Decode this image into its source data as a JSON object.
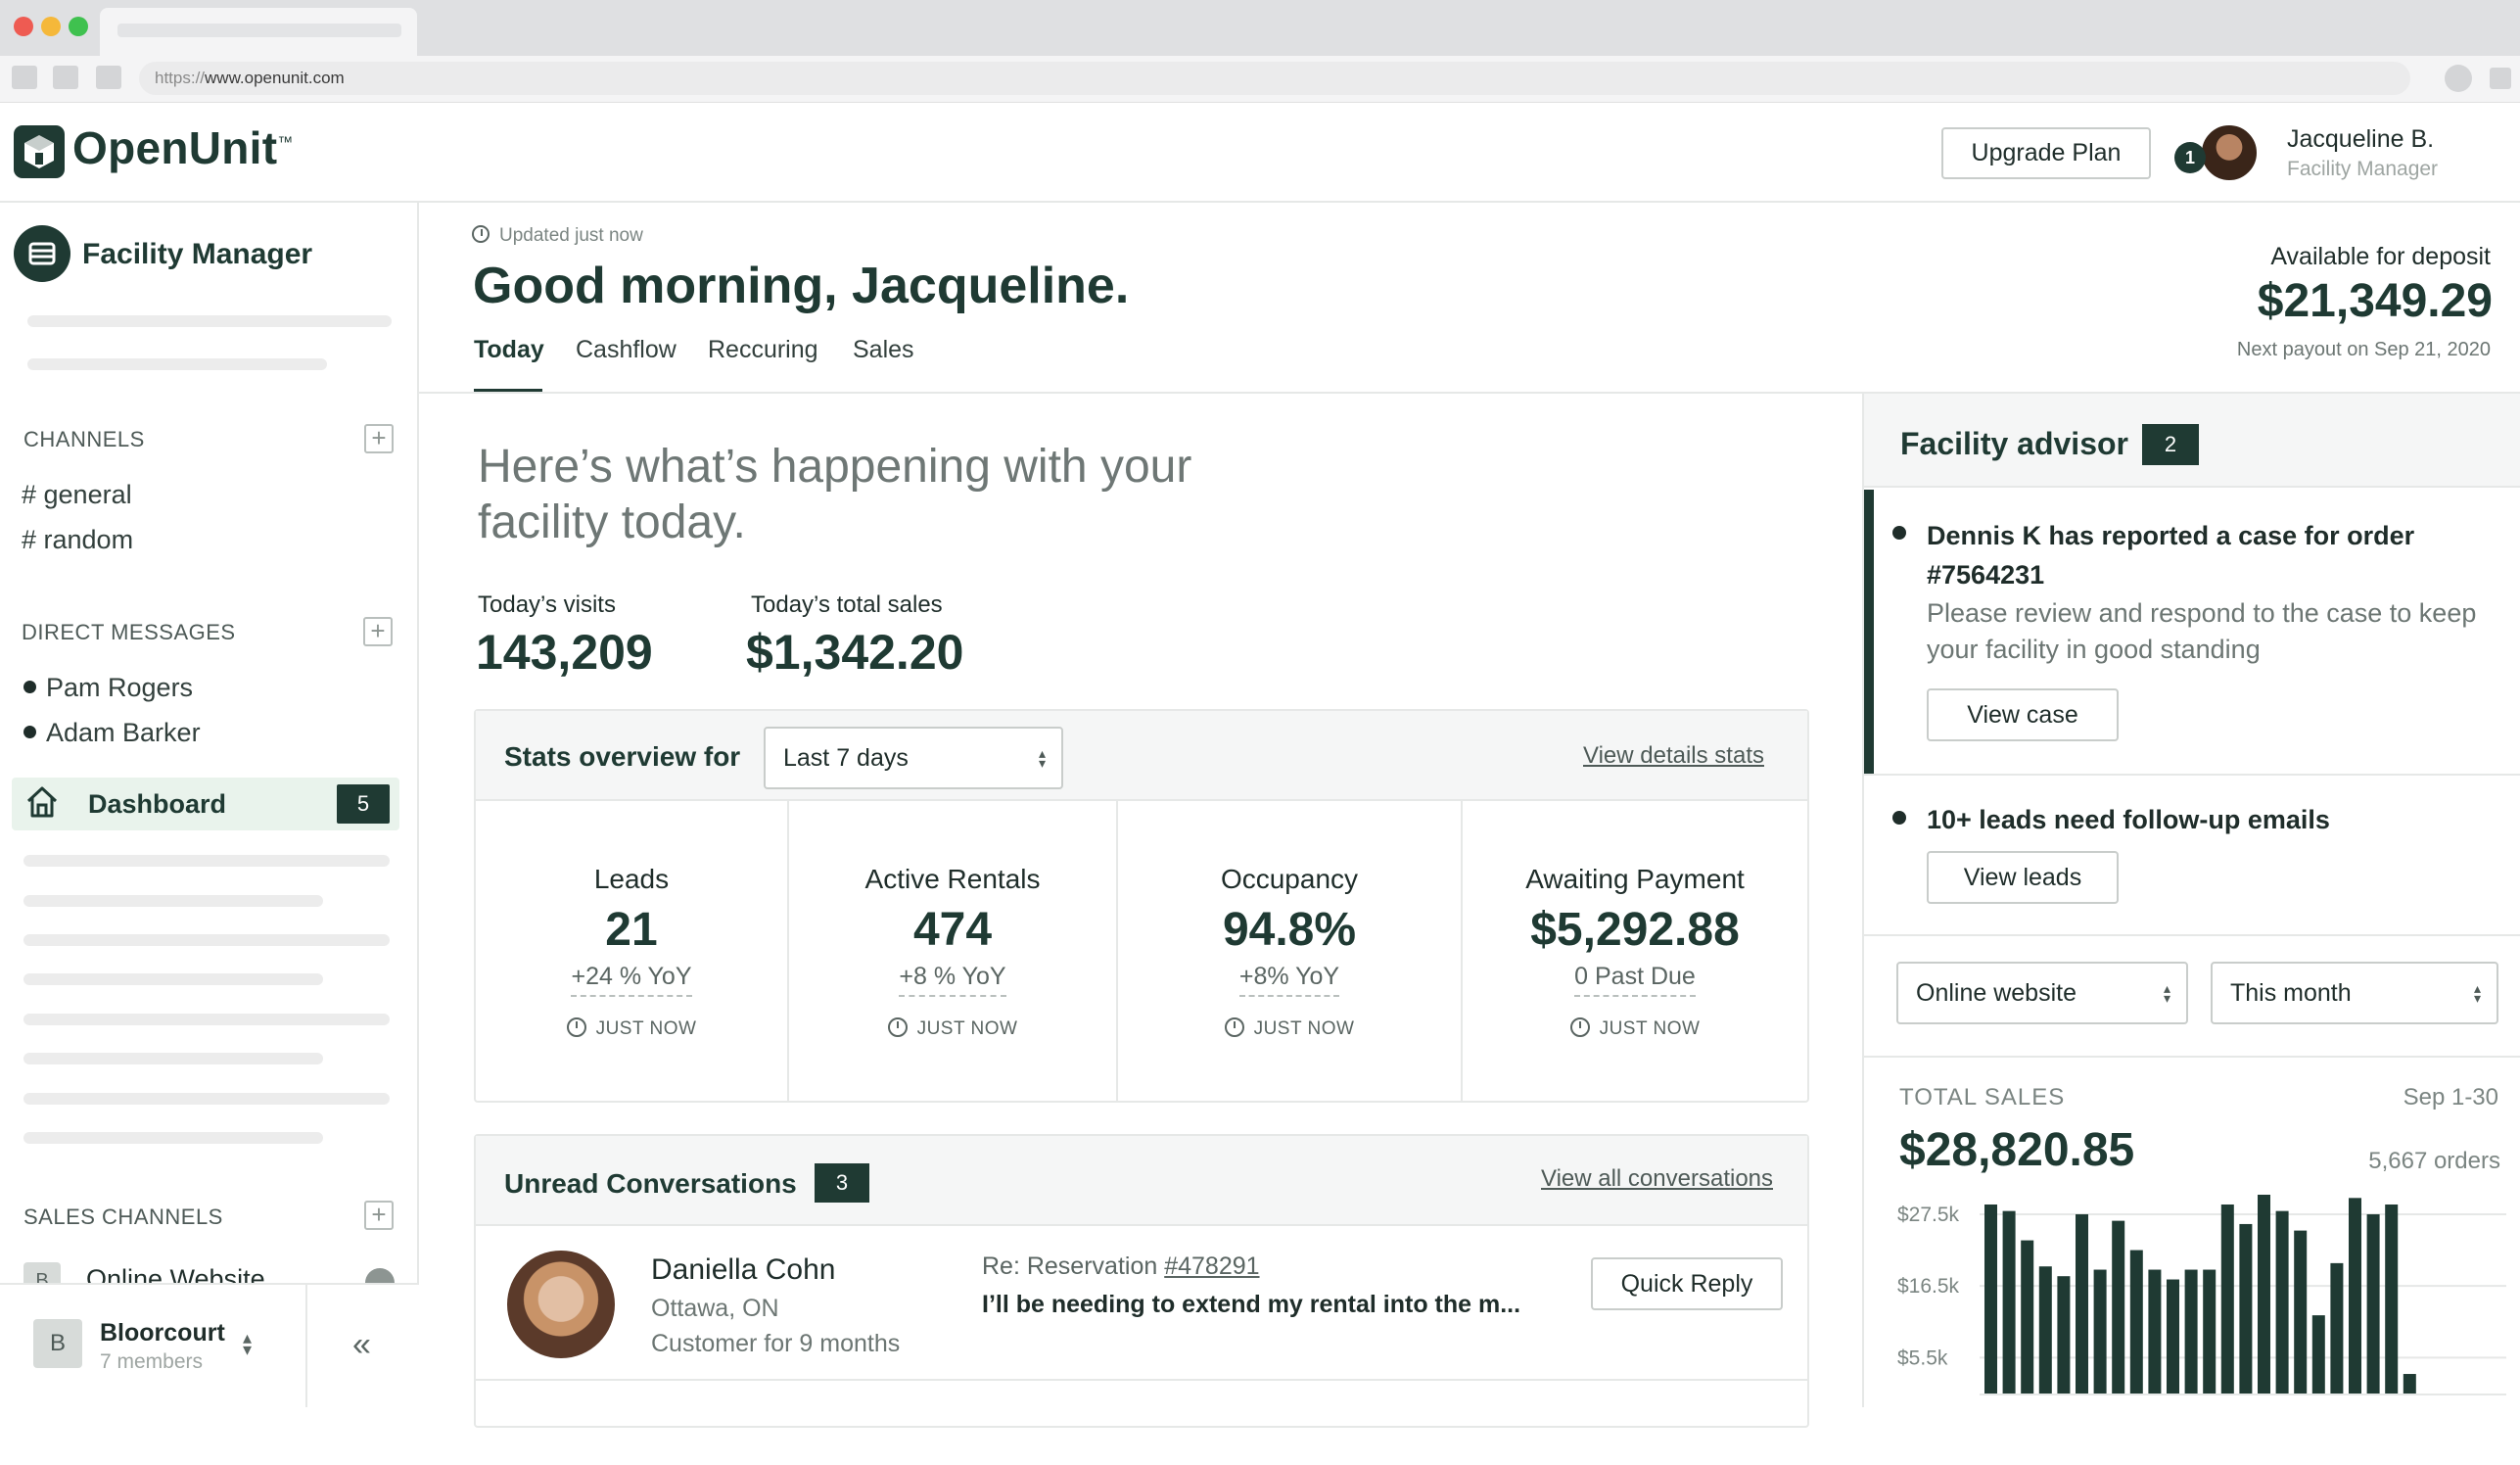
{
  "browser": {
    "url_protocol": "https://",
    "url_host": "www.openunit.com"
  },
  "app": {
    "logo_name": "OpenUnit",
    "logo_tm": "™",
    "upgrade_label": "Upgrade Plan",
    "notification_count": "1",
    "user_name": "Jacqueline B.",
    "user_role": "Facility Manager"
  },
  "sidebar": {
    "title": "Facility Manager",
    "channels_heading": "CHANNELS",
    "channels": [
      "# general",
      "# random"
    ],
    "dm_heading": "DIRECT MESSAGES",
    "direct_messages": [
      "Pam Rogers",
      "Adam Barker"
    ],
    "dashboard_label": "Dashboard",
    "dashboard_badge": "5",
    "sales_heading": "SALES CHANNELS",
    "sales_channel_icon": "B",
    "sales_channel_label": "Online Website",
    "team_initial": "B",
    "team_name": "Bloorcourt",
    "team_members": "7 members",
    "collapse_glyph": "«"
  },
  "main": {
    "updated": "Updated just now",
    "greeting": "Good morning, Jacqueline.",
    "tabs": [
      "Today",
      "Cashflow",
      "Reccuring",
      "Sales"
    ],
    "deposit_label": "Available for deposit",
    "deposit_value": "$21,349.29",
    "deposit_next": "Next payout on Sep 21, 2020",
    "happening": "Here’s what’s happening with your facility today.",
    "visits_label": "Today’s visits",
    "visits_value": "143,209",
    "sales_label": "Today’s total sales",
    "sales_value": "$1,342.20"
  },
  "stats": {
    "title": "Stats overview for",
    "period": "Last 7 days",
    "details_link": "View details stats",
    "items": [
      {
        "label": "Leads",
        "value": "21",
        "delta": "+24 % YoY",
        "time": "JUST NOW"
      },
      {
        "label": "Active Rentals",
        "value": "474",
        "delta": "+8 % YoY",
        "time": "JUST NOW"
      },
      {
        "label": "Occupancy",
        "value": "94.8%",
        "delta": "+8% YoY",
        "time": "JUST NOW"
      },
      {
        "label": "Awaiting Payment",
        "value": "$5,292.88",
        "delta": "0 Past Due",
        "time": "JUST NOW"
      }
    ]
  },
  "conversations": {
    "title": "Unread Conversations",
    "badge": "3",
    "view_all": "View all conversations",
    "item": {
      "name": "Daniella Cohn",
      "location": "Ottawa, ON",
      "since": "Customer for 9 months",
      "re_prefix": "Re: Reservation ",
      "re_ref": "#478291",
      "message": "I’ll be needing to extend my rental into the m...",
      "reply_label": "Quick Reply"
    }
  },
  "advisor": {
    "title": "Facility advisor",
    "badge": "2",
    "items": [
      {
        "title": "Dennis K has reported a case for order #7564231",
        "desc": "Please review and respond to the case to keep your facility in good standing",
        "button": "View case"
      },
      {
        "title": "10+ leads need follow-up emails",
        "button": "View leads"
      }
    ]
  },
  "sales_panel": {
    "channel_select": "Online website",
    "period_select": "This month",
    "total_label": "TOTAL SALES",
    "range": "Sep 1-30",
    "total_value": "$28,820.85",
    "orders": "5,667 orders"
  },
  "chart_data": {
    "type": "bar",
    "yticks": [
      "$27.5k",
      "$16.5k",
      "$5.5k"
    ],
    "ytick_values": [
      27500,
      16500,
      5500
    ],
    "ylim": [
      0,
      30500
    ],
    "values": [
      29000,
      28000,
      23500,
      19500,
      18000,
      27500,
      19000,
      26500,
      22000,
      19000,
      17500,
      19000,
      19000,
      29000,
      26000,
      31000,
      28000,
      25000,
      12000,
      20000,
      30000,
      27500,
      29000,
      3000
    ],
    "bar_color": "#1f3a33"
  }
}
